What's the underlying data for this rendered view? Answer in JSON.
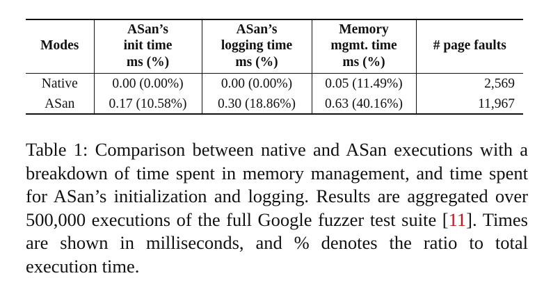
{
  "table": {
    "headers": [
      [
        "Modes"
      ],
      [
        "ASan’s",
        "init time",
        "ms (%)"
      ],
      [
        "ASan’s",
        "logging time",
        "ms (%)"
      ],
      [
        "Memory",
        "mgmt. time",
        "ms (%)"
      ],
      [
        "# page faults"
      ]
    ],
    "rows": [
      [
        "Native",
        "0.00 (0.00%)",
        "0.00 (0.00%)",
        "0.05 (11.49%)",
        "2,569"
      ],
      [
        "ASan",
        "0.17 (10.58%)",
        "0.30 (18.86%)",
        "0.63 (40.16%)",
        "11,967"
      ]
    ]
  },
  "caption": {
    "label": "Table 1:",
    "text_before_ref": "Comparison between native and ASan executions with a breakdown of time spent in memory management, and time spent for ASan’s initialization and logging. Results are aggregated over 500,000 executions of the full Google fuzzer test suite [",
    "ref": "11",
    "text_after_ref": "]. Times are shown in milliseconds, and % denotes the ratio to total execution time."
  }
}
